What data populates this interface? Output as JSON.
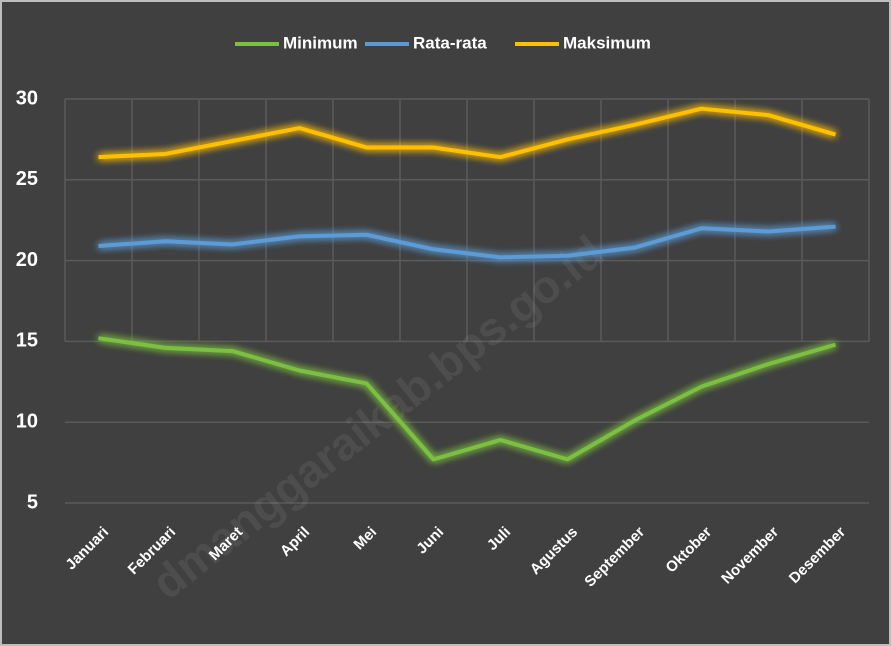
{
  "chart_data": {
    "type": "line",
    "categories": [
      "Januari",
      "Februari",
      "Maret",
      "April",
      "Mei",
      "Juni",
      "Juli",
      "Agustus",
      "September",
      "Oktober",
      "November",
      "Desember"
    ],
    "series": [
      {
        "name": "Minimum",
        "color": "#7cc043",
        "values": [
          15.2,
          14.6,
          14.4,
          13.2,
          12.4,
          7.7,
          8.9,
          7.7,
          10.1,
          12.2,
          13.6,
          14.8
        ]
      },
      {
        "name": "Rata-rata",
        "color": "#5b9bd5",
        "values": [
          20.9,
          21.2,
          21.0,
          21.5,
          21.6,
          20.7,
          20.2,
          20.3,
          20.8,
          22.0,
          21.8,
          22.1
        ]
      },
      {
        "name": "Maksimum",
        "color": "#ffc000",
        "values": [
          26.4,
          26.6,
          27.4,
          28.2,
          27.0,
          27.0,
          26.4,
          27.5,
          28.4,
          29.4,
          29.0,
          27.8
        ]
      }
    ],
    "ylim": [
      5,
      30
    ],
    "yticks": [
      5,
      10,
      15,
      20,
      25,
      30
    ],
    "grid": true,
    "legend": "top",
    "watermark": "dmanggaraikab.bps.go.id"
  }
}
